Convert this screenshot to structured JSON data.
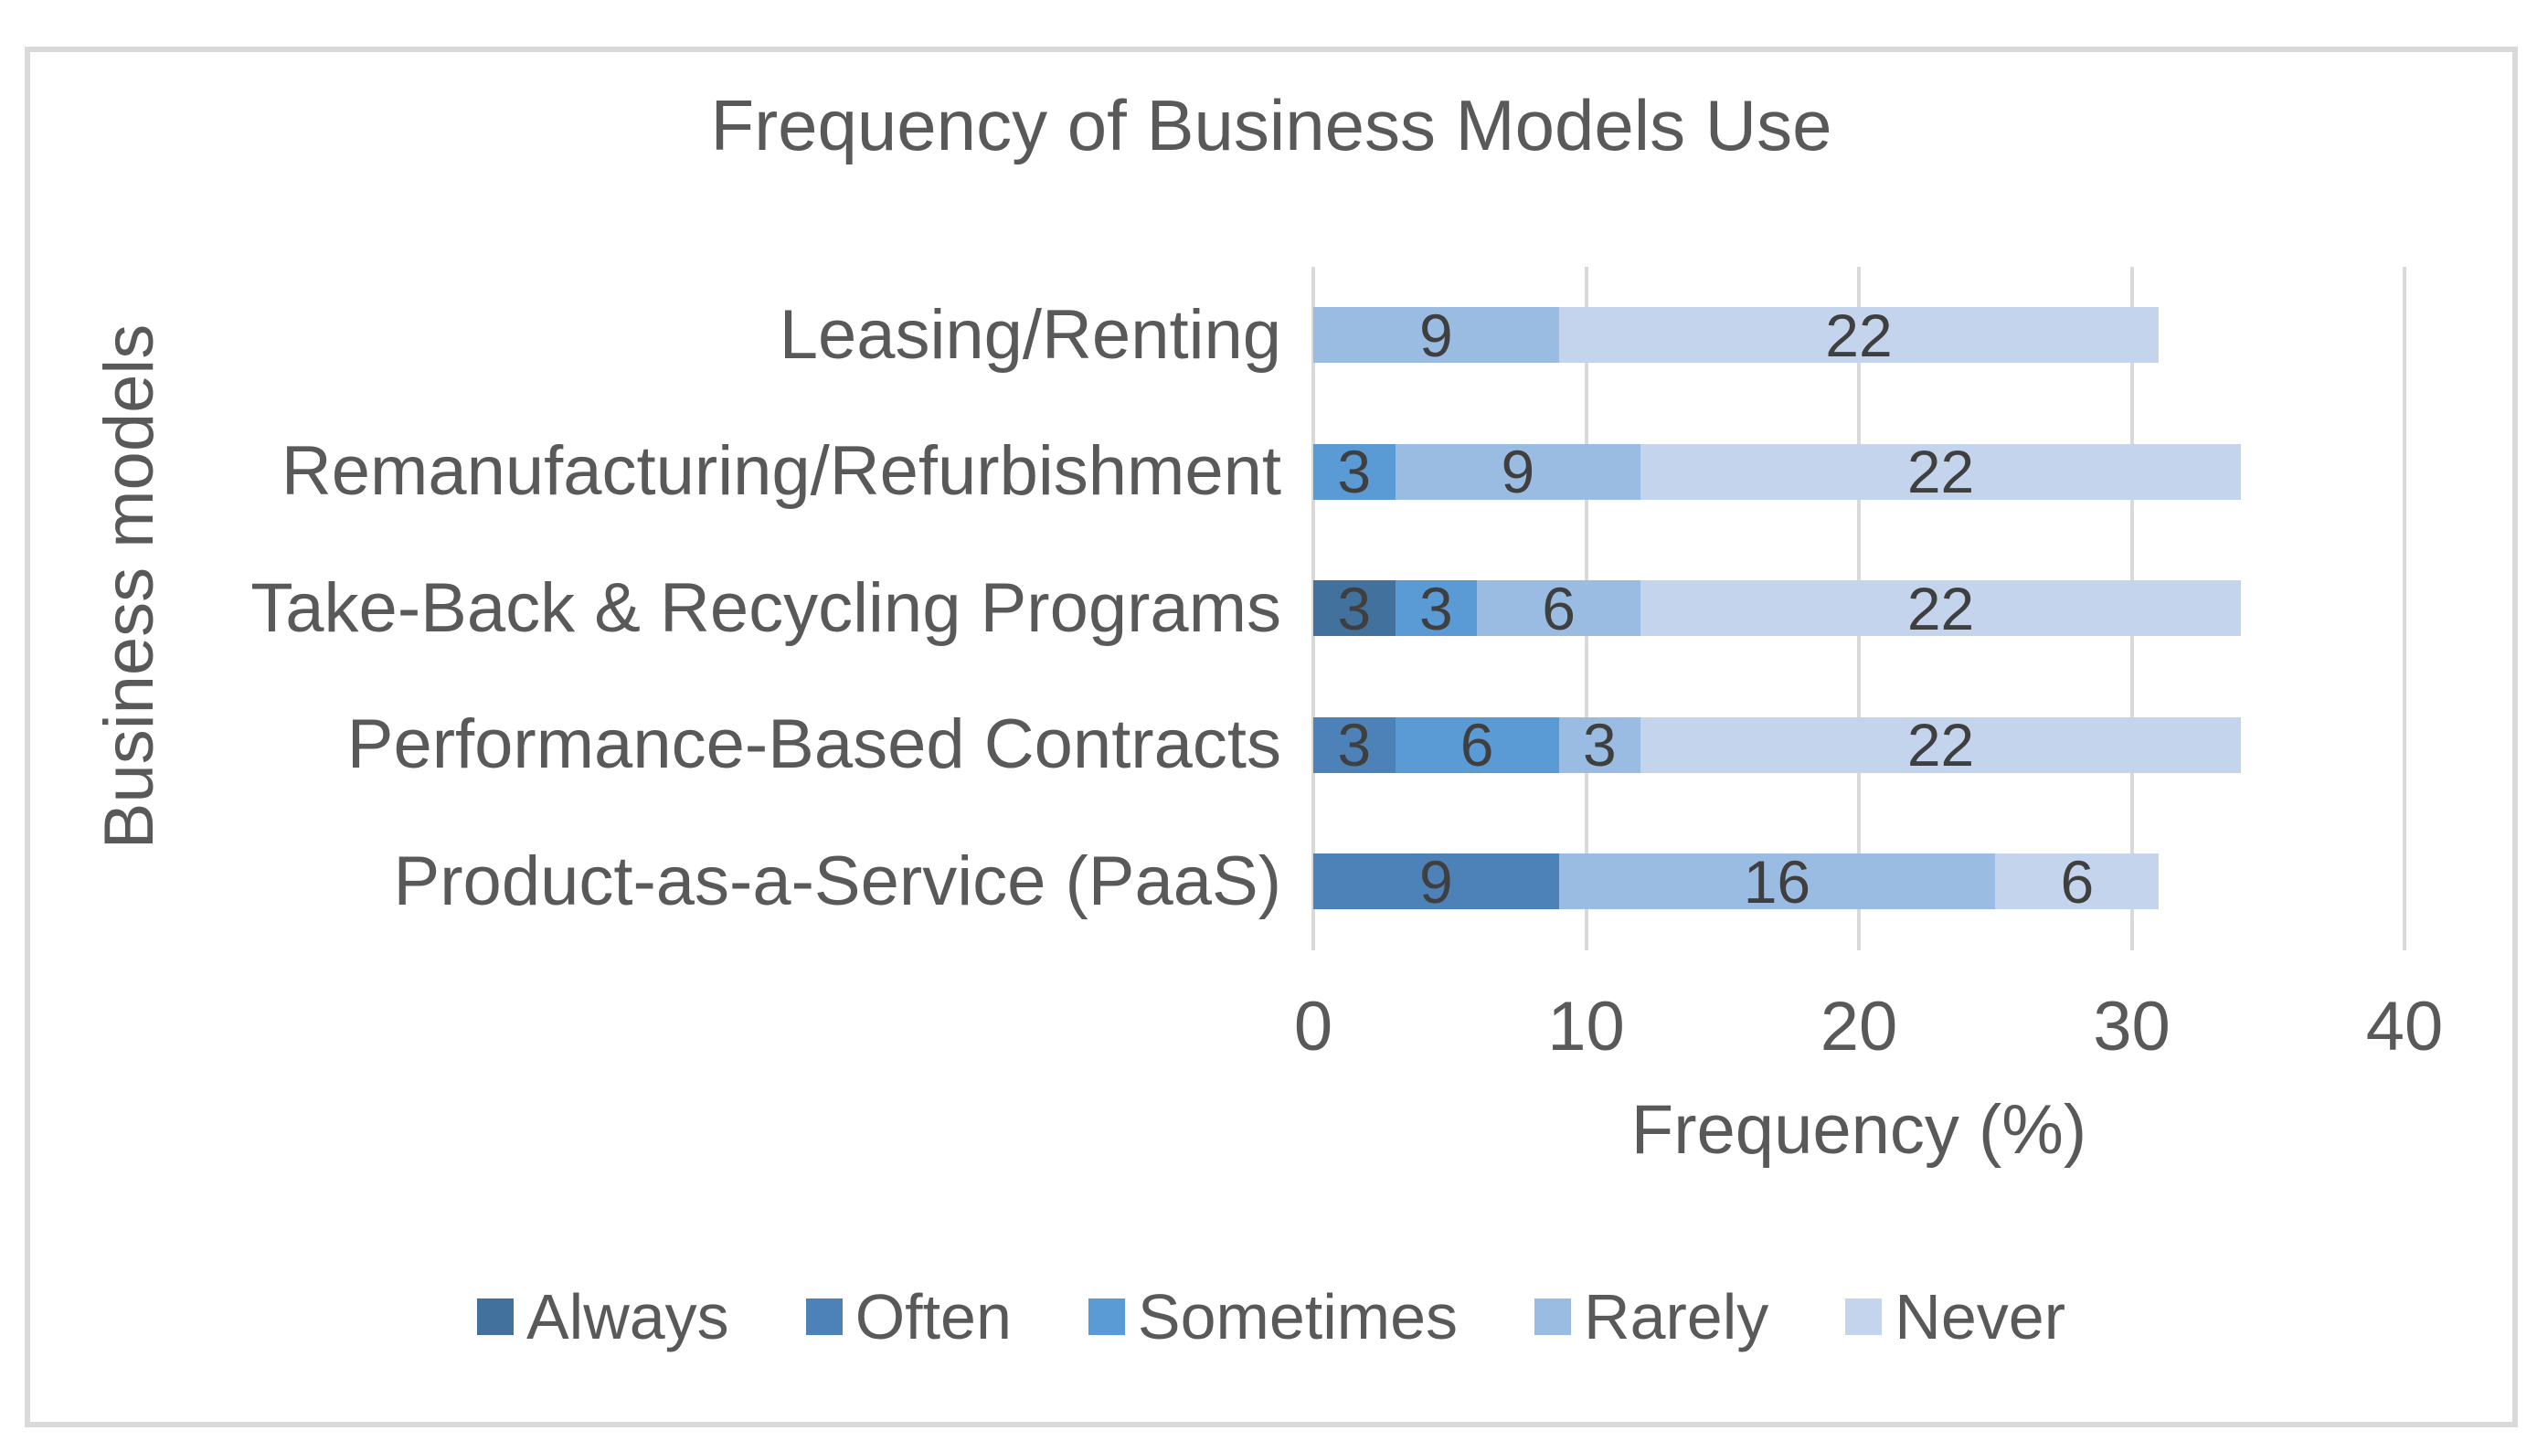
{
  "chart_data": {
    "type": "bar",
    "variant": "horizontal-stacked",
    "title": "Frequency of Business Models Use",
    "xlabel": "Frequency (%)",
    "ylabel": "Business models",
    "categories": [
      "Leasing/Renting",
      "Remanufacturing/Refurbishment",
      "Take-Back & Recycling Programs",
      "Performance-Based Contracts",
      "Product-as-a-Service (PaaS)"
    ],
    "series": [
      {
        "name": "Always",
        "color": "#41719C",
        "values": [
          0,
          0,
          3,
          0,
          0
        ]
      },
      {
        "name": "Often",
        "color": "#4D82B8",
        "values": [
          0,
          0,
          0,
          3,
          9
        ]
      },
      {
        "name": "Sometimes",
        "color": "#5B9BD5",
        "values": [
          0,
          3,
          3,
          6,
          0
        ]
      },
      {
        "name": "Rarely",
        "color": "#9ABCE2",
        "values": [
          9,
          9,
          6,
          3,
          16
        ]
      },
      {
        "name": "Never",
        "color": "#C3D4EC",
        "values": [
          22,
          22,
          22,
          22,
          6
        ]
      }
    ],
    "x_ticks": [
      0,
      10,
      20,
      30,
      40
    ],
    "xlim": [
      0,
      40
    ],
    "grid": "vertical-gridlines",
    "data_labels": "shown-on-segments",
    "legend_position": "bottom"
  },
  "styles": {
    "background": "#FFFFFF",
    "frame_border_color": "#D9D9D9",
    "gridline_color": "#D9D9D9",
    "axis_text_color": "#595959",
    "data_label_color": "#3F3F3F"
  }
}
